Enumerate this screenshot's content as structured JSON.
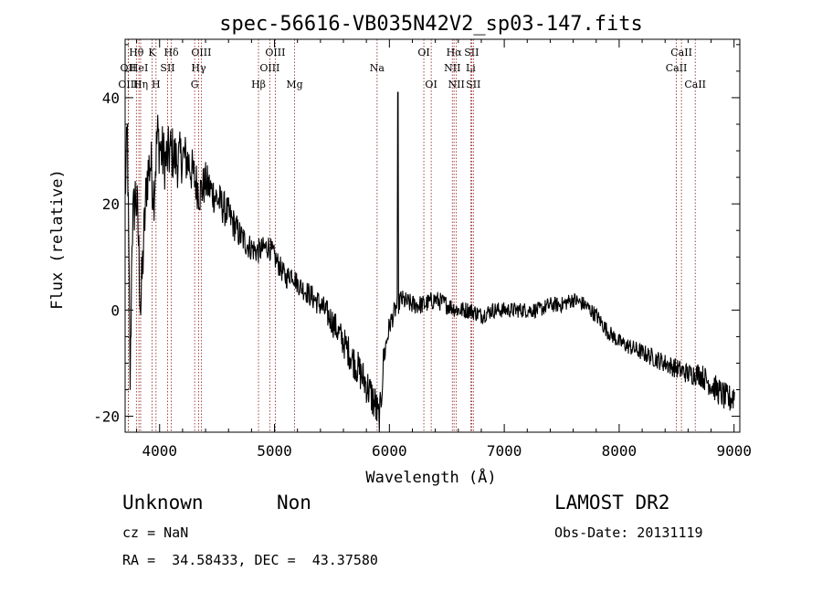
{
  "chart_data": {
    "type": "line",
    "title": "spec-56616-VB035N42V2_sp03-147.fits",
    "xlabel": "Wavelength (Å)",
    "ylabel": "Flux (relative)",
    "xlim": [
      3700,
      9050
    ],
    "ylim": [
      -23,
      51
    ],
    "xticks": [
      4000,
      5000,
      6000,
      7000,
      8000,
      9000
    ],
    "yticks": [
      -20,
      0,
      20,
      40
    ],
    "grid": false,
    "line_color": "#000000",
    "marker_color": "#8b1a1a",
    "spectrum_anchors": [
      [
        3700,
        22
      ],
      [
        3720,
        33
      ],
      [
        3745,
        -15
      ],
      [
        3760,
        15
      ],
      [
        3790,
        22
      ],
      [
        3810,
        17
      ],
      [
        3835,
        0
      ],
      [
        3860,
        12
      ],
      [
        3890,
        25
      ],
      [
        3920,
        28
      ],
      [
        3950,
        22
      ],
      [
        3980,
        33
      ],
      [
        4010,
        30
      ],
      [
        4050,
        28
      ],
      [
        4100,
        30
      ],
      [
        4150,
        28
      ],
      [
        4200,
        29
      ],
      [
        4250,
        28
      ],
      [
        4300,
        25
      ],
      [
        4350,
        22
      ],
      [
        4400,
        24
      ],
      [
        4500,
        21
      ],
      [
        4600,
        18
      ],
      [
        4700,
        14
      ],
      [
        4780,
        12
      ],
      [
        4850,
        11
      ],
      [
        4950,
        12
      ],
      [
        5000,
        10
      ],
      [
        5050,
        8
      ],
      [
        5100,
        6
      ],
      [
        5150,
        7
      ],
      [
        5200,
        5
      ],
      [
        5300,
        3
      ],
      [
        5400,
        1
      ],
      [
        5500,
        -2
      ],
      [
        5600,
        -6
      ],
      [
        5700,
        -10
      ],
      [
        5800,
        -14
      ],
      [
        5880,
        -18
      ],
      [
        5910,
        -21
      ],
      [
        5925,
        -18
      ],
      [
        5950,
        -9
      ],
      [
        6000,
        -3
      ],
      [
        6050,
        0
      ],
      [
        6100,
        2
      ],
      [
        6200,
        1
      ],
      [
        6300,
        1
      ],
      [
        6400,
        2
      ],
      [
        6500,
        1
      ],
      [
        6600,
        0
      ],
      [
        6700,
        0
      ],
      [
        6800,
        -1
      ],
      [
        6900,
        0
      ],
      [
        7000,
        0
      ],
      [
        7100,
        0
      ],
      [
        7200,
        0
      ],
      [
        7300,
        0
      ],
      [
        7400,
        1
      ],
      [
        7500,
        1
      ],
      [
        7600,
        2
      ],
      [
        7700,
        1
      ],
      [
        7800,
        -1
      ],
      [
        7900,
        -4
      ],
      [
        8000,
        -6
      ],
      [
        8100,
        -7
      ],
      [
        8200,
        -8
      ],
      [
        8300,
        -9
      ],
      [
        8400,
        -10
      ],
      [
        8500,
        -11
      ],
      [
        8600,
        -12
      ],
      [
        8700,
        -12
      ],
      [
        8800,
        -14
      ],
      [
        8900,
        -16
      ],
      [
        8950,
        -17
      ],
      [
        9000,
        -16
      ]
    ],
    "noise_amplitude": [
      [
        3700,
        6
      ],
      [
        4000,
        6
      ],
      [
        4400,
        4
      ],
      [
        4800,
        2.5
      ],
      [
        5200,
        2
      ],
      [
        5600,
        3
      ],
      [
        5900,
        4
      ],
      [
        6000,
        2
      ],
      [
        7000,
        1.5
      ],
      [
        8000,
        1.5
      ],
      [
        8600,
        2
      ],
      [
        9000,
        3
      ]
    ],
    "spikes": [
      {
        "x": 6075,
        "y": 41
      },
      {
        "x": 9010,
        "y": 0
      }
    ],
    "spectral_lines": [
      {
        "label": "Hθ",
        "x": 3798,
        "row": 1
      },
      {
        "label": "OII",
        "x": 3727,
        "row": 2
      },
      {
        "label": "OIII",
        "x": 3727,
        "row": 3
      },
      {
        "label": "HeI",
        "x": 3820,
        "row": 2
      },
      {
        "label": "Hη",
        "x": 3835,
        "row": 3
      },
      {
        "label": "K",
        "x": 3934,
        "row": 1
      },
      {
        "label": "SII",
        "x": 4070,
        "row": 2
      },
      {
        "label": "H",
        "x": 3969,
        "row": 3
      },
      {
        "label": "Hδ",
        "x": 4102,
        "row": 1
      },
      {
        "label": "OIII",
        "x": 4363,
        "row": 1
      },
      {
        "label": "Hγ",
        "x": 4340,
        "row": 2
      },
      {
        "label": "G",
        "x": 4305,
        "row": 3
      },
      {
        "label": "OIII",
        "x": 5007,
        "row": 1
      },
      {
        "label": "OIII",
        "x": 4959,
        "row": 2
      },
      {
        "label": "Hβ",
        "x": 4861,
        "row": 3
      },
      {
        "label": "Mg",
        "x": 5175,
        "row": 3
      },
      {
        "label": "Na",
        "x": 5893,
        "row": 2
      },
      {
        "label": "OI",
        "x": 6300,
        "row": 1
      },
      {
        "label": "OI",
        "x": 6364,
        "row": 3
      },
      {
        "label": "Hα",
        "x": 6563,
        "row": 1
      },
      {
        "label": "SII",
        "x": 6716,
        "row": 1
      },
      {
        "label": "NII",
        "x": 6548,
        "row": 2
      },
      {
        "label": "Li",
        "x": 6708,
        "row": 2
      },
      {
        "label": "NII",
        "x": 6583,
        "row": 3
      },
      {
        "label": "SII",
        "x": 6731,
        "row": 3
      },
      {
        "label": "CaII",
        "x": 8542,
        "row": 1
      },
      {
        "label": "CaII",
        "x": 8498,
        "row": 2
      },
      {
        "label": "CaII",
        "x": 8662,
        "row": 3
      }
    ]
  },
  "info": {
    "object_class": "Unknown",
    "object_subclass": "Non",
    "survey": "LAMOST DR2",
    "redshift": "cz = NaN",
    "obs_date": "Obs-Date: 20131119",
    "coordinates": "RA =  34.58433, DEC =  43.37580"
  }
}
